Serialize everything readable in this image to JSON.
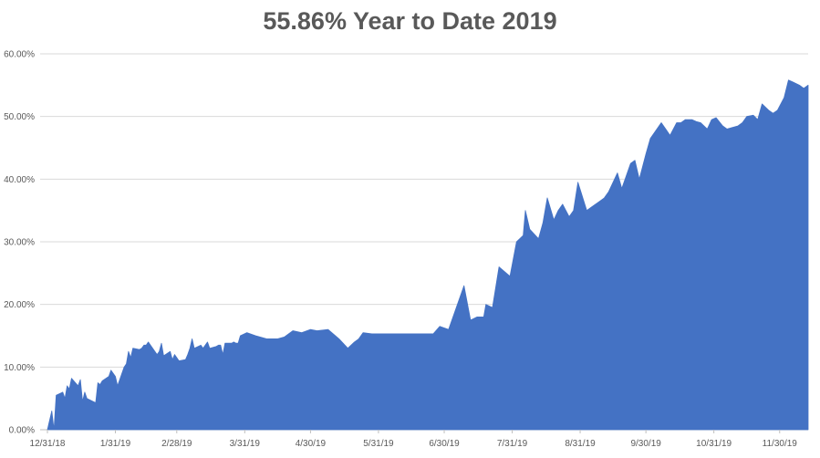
{
  "chart_data": {
    "type": "area",
    "title": "55.86% Year to Date 2019",
    "xlabel": "",
    "ylabel": "",
    "ylim": [
      0,
      60
    ],
    "yticks": [
      "0.00%",
      "10.00%",
      "20.00%",
      "30.00%",
      "40.00%",
      "50.00%",
      "60.00%"
    ],
    "xticks": [
      "12/31/18",
      "1/31/19",
      "2/28/19",
      "3/31/19",
      "4/30/19",
      "5/31/19",
      "6/30/19",
      "7/31/19",
      "8/31/19",
      "9/30/19",
      "10/31/19",
      "11/30/19"
    ],
    "grid": true,
    "legend": "none",
    "color": "#4472C4",
    "series": [
      {
        "x": [
          "12/31/18",
          "1/2/19",
          "1/3/19",
          "1/4/19",
          "1/7/19",
          "1/8/19",
          "1/9/19",
          "1/10/19",
          "1/11/19",
          "1/14/19",
          "1/15/19",
          "1/16/19",
          "1/17/19",
          "1/18/19",
          "1/22/19",
          "1/23/19",
          "1/24/19",
          "1/25/19",
          "1/28/19",
          "1/29/19",
          "1/30/19",
          "1/31/19",
          "2/1/19",
          "2/4/19",
          "2/5/19",
          "2/6/19",
          "2/7/19",
          "2/8/19",
          "2/11/19",
          "2/12/19",
          "2/13/19",
          "2/14/19",
          "2/15/19",
          "2/19/19",
          "2/20/19",
          "2/21/19",
          "2/22/19",
          "2/25/19",
          "2/26/19",
          "2/27/19",
          "2/28/19",
          "3/1/19",
          "3/4/19",
          "3/5/19",
          "3/6/19",
          "3/7/19",
          "3/8/19",
          "3/11/19",
          "3/12/19",
          "3/13/19",
          "3/14/19",
          "3/15/19",
          "3/18/19",
          "3/19/19",
          "3/20/19",
          "3/21/19",
          "3/22/19",
          "3/25/19",
          "3/26/19",
          "3/27/19",
          "3/28/19",
          "3/29/19",
          "4/1/19",
          "4/5/19",
          "4/10/19",
          "4/12/19",
          "4/15/19",
          "4/18/19",
          "4/22/19",
          "4/26/19",
          "4/30/19",
          "5/3/19",
          "5/8/19",
          "5/13/19",
          "5/17/19",
          "5/20/19",
          "5/22/19",
          "5/24/19",
          "5/28/19",
          "5/31/19",
          "6/4/19",
          "6/7/19",
          "6/11/19",
          "6/14/19",
          "6/18/19",
          "6/21/19",
          "6/25/19",
          "6/28/19",
          "7/2/19",
          "7/9/19",
          "7/12/19",
          "7/15/19",
          "7/17/19",
          "7/18/19",
          "7/19/19",
          "7/22/19",
          "7/25/19",
          "7/30/19",
          "8/2/19",
          "8/5/19",
          "8/6/19",
          "8/8/19",
          "8/12/19",
          "8/14/19",
          "8/15/19",
          "8/16/19",
          "8/19/19",
          "8/21/19",
          "8/23/19",
          "8/26/19",
          "8/28/19",
          "8/30/19",
          "9/3/19",
          "9/5/19",
          "9/9/19",
          "9/11/19",
          "9/13/19",
          "9/17/19",
          "9/19/19",
          "9/23/19",
          "9/25/19",
          "9/27/19",
          "9/30/19",
          "10/2/19",
          "10/4/19",
          "10/7/19",
          "10/9/19",
          "10/11/19",
          "10/14/19",
          "10/16/19",
          "10/18/19",
          "10/21/19",
          "10/23/19",
          "10/25/19",
          "10/28/19",
          "10/30/19",
          "11/1/19",
          "11/4/19",
          "11/6/19",
          "11/8/19",
          "11/11/19",
          "11/13/19",
          "11/15/19",
          "11/18/19",
          "11/20/19",
          "11/22/19",
          "11/25/19",
          "11/27/19",
          "11/29/19",
          "12/2/19",
          "12/4/19",
          "12/6/19",
          "12/9/19",
          "12/11/19",
          "12/13/19"
        ],
        "values": [
          0.0,
          3.0,
          0.0,
          5.5,
          6.0,
          5.0,
          7.0,
          6.5,
          8.2,
          7.0,
          8.0,
          4.5,
          6.0,
          5.0,
          4.3,
          7.5,
          7.2,
          7.8,
          8.5,
          9.5,
          9.0,
          8.5,
          7.0,
          10.0,
          10.5,
          12.5,
          11.5,
          13.0,
          12.8,
          13.0,
          13.5,
          13.5,
          14.0,
          12.0,
          12.5,
          13.8,
          11.8,
          12.5,
          11.2,
          12.0,
          11.5,
          11.0,
          11.2,
          12.0,
          13.0,
          14.5,
          13.0,
          13.5,
          13.0,
          13.5,
          14.0,
          13.0,
          13.3,
          13.5,
          13.5,
          12.0,
          13.8,
          13.8,
          14.0,
          13.8,
          13.8,
          15.0,
          15.5,
          15.0,
          14.5,
          14.5,
          14.5,
          14.8,
          15.8,
          15.5,
          16.0,
          15.8,
          16.0,
          14.5,
          13.0,
          14.0,
          14.5,
          15.5,
          15.3,
          15.3,
          15.3,
          15.3,
          15.3,
          15.3,
          15.3,
          15.3,
          15.3,
          16.5,
          16.0,
          23.0,
          17.5,
          18.0,
          18.0,
          18.0,
          20.0,
          19.5,
          26.0,
          24.5,
          30.0,
          31.0,
          35.0,
          32.0,
          30.5,
          33.0,
          35.0,
          37.0,
          33.5,
          35.0,
          36.0,
          34.0,
          35.0,
          39.5,
          35.0,
          35.5,
          36.5,
          37.0,
          38.0,
          41.0,
          38.5,
          42.5,
          43.0,
          40.0,
          44.0,
          46.5,
          47.5,
          49.0,
          48.0,
          47.0,
          49.0,
          49.0,
          49.5,
          49.5,
          49.2,
          49.0,
          48.0,
          49.5,
          49.8,
          48.5,
          48.0,
          48.2,
          48.5,
          49.0,
          50.0,
          50.2,
          49.5,
          52.0,
          51.0,
          50.5,
          51.0,
          53.0,
          55.8,
          55.5,
          55.0,
          54.5,
          55.0
        ],
        "note": ""
      }
    ]
  }
}
